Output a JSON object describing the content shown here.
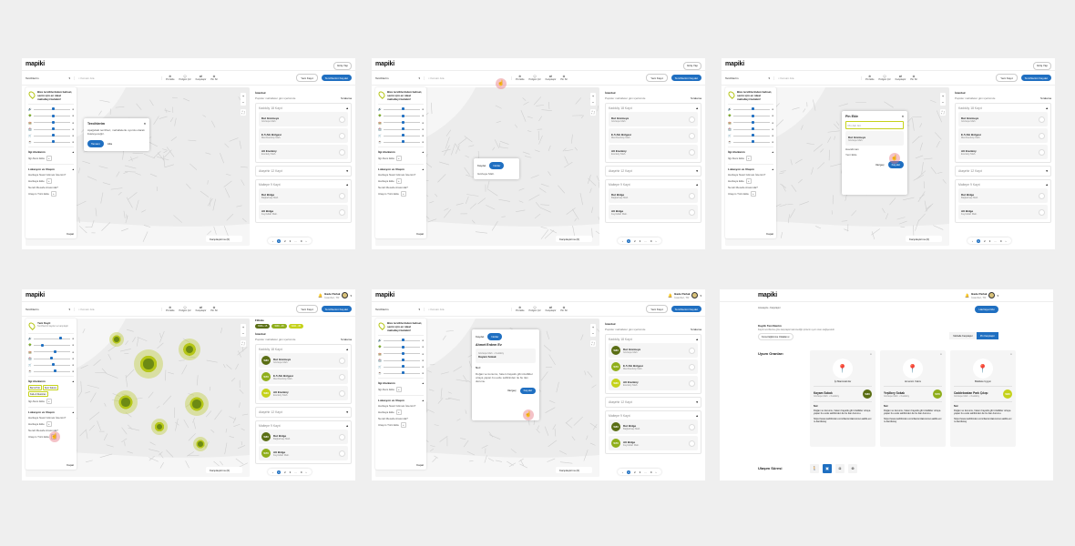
{
  "brand": "mapiki",
  "colors": {
    "primary": "#1f6fc1",
    "lime": "#b5c617",
    "olive": "#5a6e14",
    "green": "#8fae1b",
    "yellow": "#c5d21a"
  },
  "header": {
    "login": "Giriş Yap",
    "user_name": "Bade Parlak",
    "user_sub": "İstanbul, TR"
  },
  "toolbar": {
    "select": "Tercihlerim",
    "search_placeholder": "Konum Ara",
    "tools": [
      {
        "icon": "pin-add-icon",
        "label": "Pin Ekle"
      },
      {
        "icon": "polygon-icon",
        "label": "Poligon Çiz"
      },
      {
        "icon": "compare-icon",
        "label": "Karşılaştır"
      },
      {
        "icon": "pin-delete-icon",
        "label": "Pin Sil"
      }
    ],
    "new_record": "Yeni Kayıt",
    "save": "Tercihlerimi Kaydet"
  },
  "sidebar": {
    "intro": "Bize tercihlerinden bahset, senin için en ideal mahalleyi bulalım!",
    "intro_saved": "Yeni Kayıt",
    "intro_saved_sub": "Tercihlerimi kaydet ve karşılaştır",
    "interests": "İlgi Alanlarım",
    "add_interest": "İlgi Alanı Ekle",
    "interest_chips": [
      "Bar & Pub",
      "Spor Salonu",
      "Kafe & Restoran"
    ],
    "location": "Lokasyon ve Ulaşım",
    "q1": "Haritaya Nasıl Gitmek İstersin?",
    "add_map": "Haritaya Ekle",
    "q2": "Nereli Mesafe Arasında?",
    "add_transport": "Ulaşım Türü Ekle",
    "close": "Kapat"
  },
  "map": {
    "compare": "Karşılaştırma (0)"
  },
  "list": {
    "city": "İstanbul",
    "subtitle": "Popüler mahalleler gün içerisinde",
    "sort": "Sıralama",
    "filters_title": "Filtrele",
    "filters": [
      {
        "label": "%80+ 15",
        "color": "#5a6e14"
      },
      {
        "label": "%60 - 25",
        "color": "#8fae1b"
      },
      {
        "label": "%40 - 35",
        "color": "#c5d21a"
      }
    ],
    "groups": [
      {
        "name": "Kadıköy",
        "meta": "18 Kayıt",
        "items": [
          {
            "name": "Dut Gözmeye",
            "sub": "Göztepe Mah.",
            "score": "%80",
            "color": "#5a6e14"
          },
          {
            "name": "E-5 Altı Bölgesi",
            "sub": "Merdivenköy Mah.",
            "score": "%70",
            "color": "#8fae1b"
          },
          {
            "name": "Alt Erenköy",
            "sub": "Erenköy Mah.",
            "score": "%60",
            "color": "#c5d21a"
          }
        ]
      },
      {
        "name": "Ataşehir",
        "meta": "12 Kayıt",
        "items": []
      },
      {
        "name": "Maltepe",
        "meta": "9 Kayıt",
        "items": [
          {
            "name": "Dut Bölge",
            "sub": "Bağlarbaşı Mah.",
            "score": "%80",
            "color": "#5a6e14"
          },
          {
            "name": "Alt Bölge",
            "sub": "Feyzullah Mah.",
            "score": "%70",
            "color": "#8fae1b"
          }
        ]
      }
    ],
    "pages": [
      "1",
      "2",
      "3",
      "...",
      "9"
    ],
    "pin_label": "Pinlerde"
  },
  "popup_prefs": {
    "title": "Tercihlerim",
    "text": "Aşağıdaki tercihleri, mahallelerle uyumlu olarak listeleyeceğiz.",
    "ok": "Tamam",
    "skip": "Atla"
  },
  "popup_pin": {
    "title": "Pin Ekle",
    "input": "Pin Adı Gir",
    "item": "Dut Gözmeye",
    "item_sub": "Göztepe Mah.",
    "option1": "Havalimanı",
    "option2": "Yeni Ekle",
    "cancel": "Vazgeç",
    "save": "Kaydet"
  },
  "popup_mini": {
    "tab1": "Kaydet",
    "tab2": "Notlar",
    "label": "Göztepe Mah."
  },
  "popup_note": {
    "tab1": "Kaydet",
    "tab2": "Notlar",
    "title": "Ahmet Erdem Ev",
    "loc": "Göztepe Mah. • Kadıköy",
    "street": "Kayam Sokak",
    "note_label": "Not:",
    "note": "Doğan ve konumu, hatem bayatık gibi özellikler ortaya yapan bu evde sahibinden ile bu ilan durumu.",
    "cancel": "Vazgeç",
    "save": "Kaydet"
  },
  "compare": {
    "breadcrumb": [
      "Anasayfa",
      "Karşılaştır"
    ],
    "back": "Haritaya Dön",
    "saved_title": "Kayıtlı Tercihlerim",
    "saved_desc": "Kayıtlı tercihlerine göre karşılaştırmak istediğin pinlerin uyum oranı değişecektir.",
    "select": "Konut Eğitimine Odaklan",
    "seg": [
      "Mahalle Karşılaştır",
      "Pin Karşılaştır"
    ],
    "section1": "Uyum Oranları",
    "section2": "Ulaşım Süresi",
    "cards": [
      {
        "pin": "İyi Manzaralı Ev",
        "street": "Kayam Sokak",
        "loc": "Göztepe Mah. • Kadıköy",
        "score": "%80",
        "color": "#5a6e14"
      },
      {
        "pin": "Annemin Yakını",
        "street": "Yeşilbey Sokak",
        "loc": "Göztepe Mah. • Kadıköy",
        "score": "%70",
        "color": "#8fae1b"
      },
      {
        "pin": "Bisiklete Uygun",
        "street": "Caddebostan Park Çıkışı",
        "loc": "Göztepe Mah. • Kadıköy",
        "score": "%60",
        "color": "#c5d21a"
      }
    ],
    "note_label": "Not:",
    "note": "Doğan ve konumu, hatem bayatık gibi özellikler ortaya yapan bu evde sahibinden ile bu ilan durumu.",
    "link": "https://www.sahibinden.com/ilan/emlak-konut-satilik-evim-ilan/detay",
    "transport": [
      {
        "icon": "walk-icon",
        "glyph": "🚶"
      },
      {
        "icon": "bus-icon",
        "glyph": "▣"
      },
      {
        "icon": "car-icon",
        "glyph": "◘"
      },
      {
        "icon": "bike-icon",
        "glyph": "⊗"
      }
    ]
  }
}
